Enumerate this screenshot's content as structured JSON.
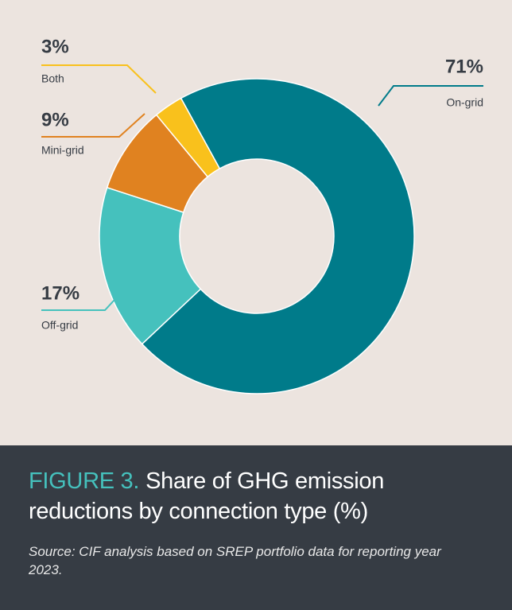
{
  "chart_data": {
    "type": "pie",
    "figure_label": "FIGURE 3.",
    "title": "Share of GHG emission reductions by connection type (%)",
    "source": "Source: CIF analysis based on SREP portfolio data for reporting year 2023.",
    "categories": [
      "On-grid",
      "Off-grid",
      "Mini-grid",
      "Both"
    ],
    "values": [
      71,
      17,
      9,
      3
    ],
    "value_labels": [
      "71%",
      "17%",
      "9%",
      "3%"
    ],
    "colors": [
      "#007b8a",
      "#45c1bd",
      "#e08220",
      "#f9c11c"
    ]
  }
}
